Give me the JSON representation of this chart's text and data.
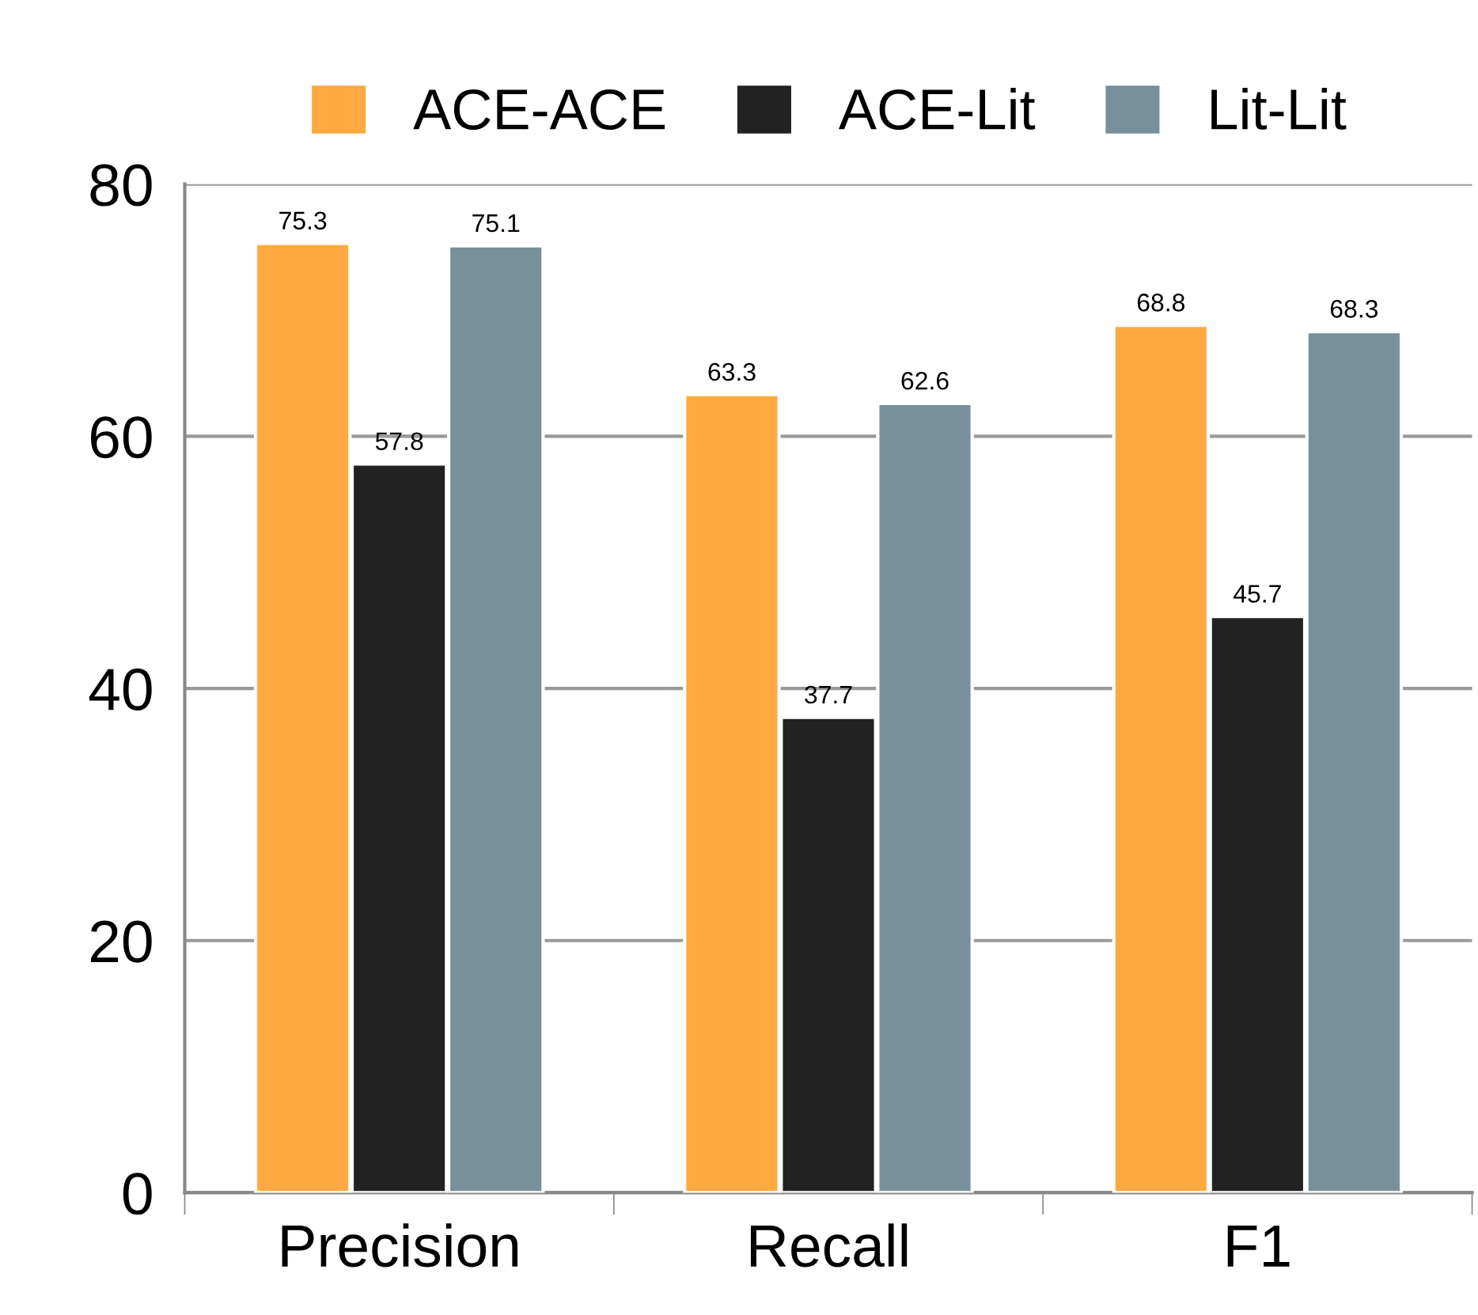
{
  "chart_data": {
    "type": "bar",
    "categories": [
      "Precision",
      "Recall",
      "F1"
    ],
    "series": [
      {
        "name": "ACE-ACE",
        "color": "#ffa940",
        "values": [
          75.3,
          63.3,
          68.8
        ]
      },
      {
        "name": "ACE-Lit",
        "color": "#222222",
        "values": [
          57.8,
          37.7,
          45.7
        ]
      },
      {
        "name": "Lit-Lit",
        "color": "#78909c",
        "values": [
          75.1,
          62.6,
          68.3
        ]
      }
    ],
    "ylim": [
      0,
      80
    ],
    "yticks": [
      0,
      20,
      40,
      60,
      80
    ],
    "grid": "y",
    "legend": "top",
    "data_labels": true
  }
}
